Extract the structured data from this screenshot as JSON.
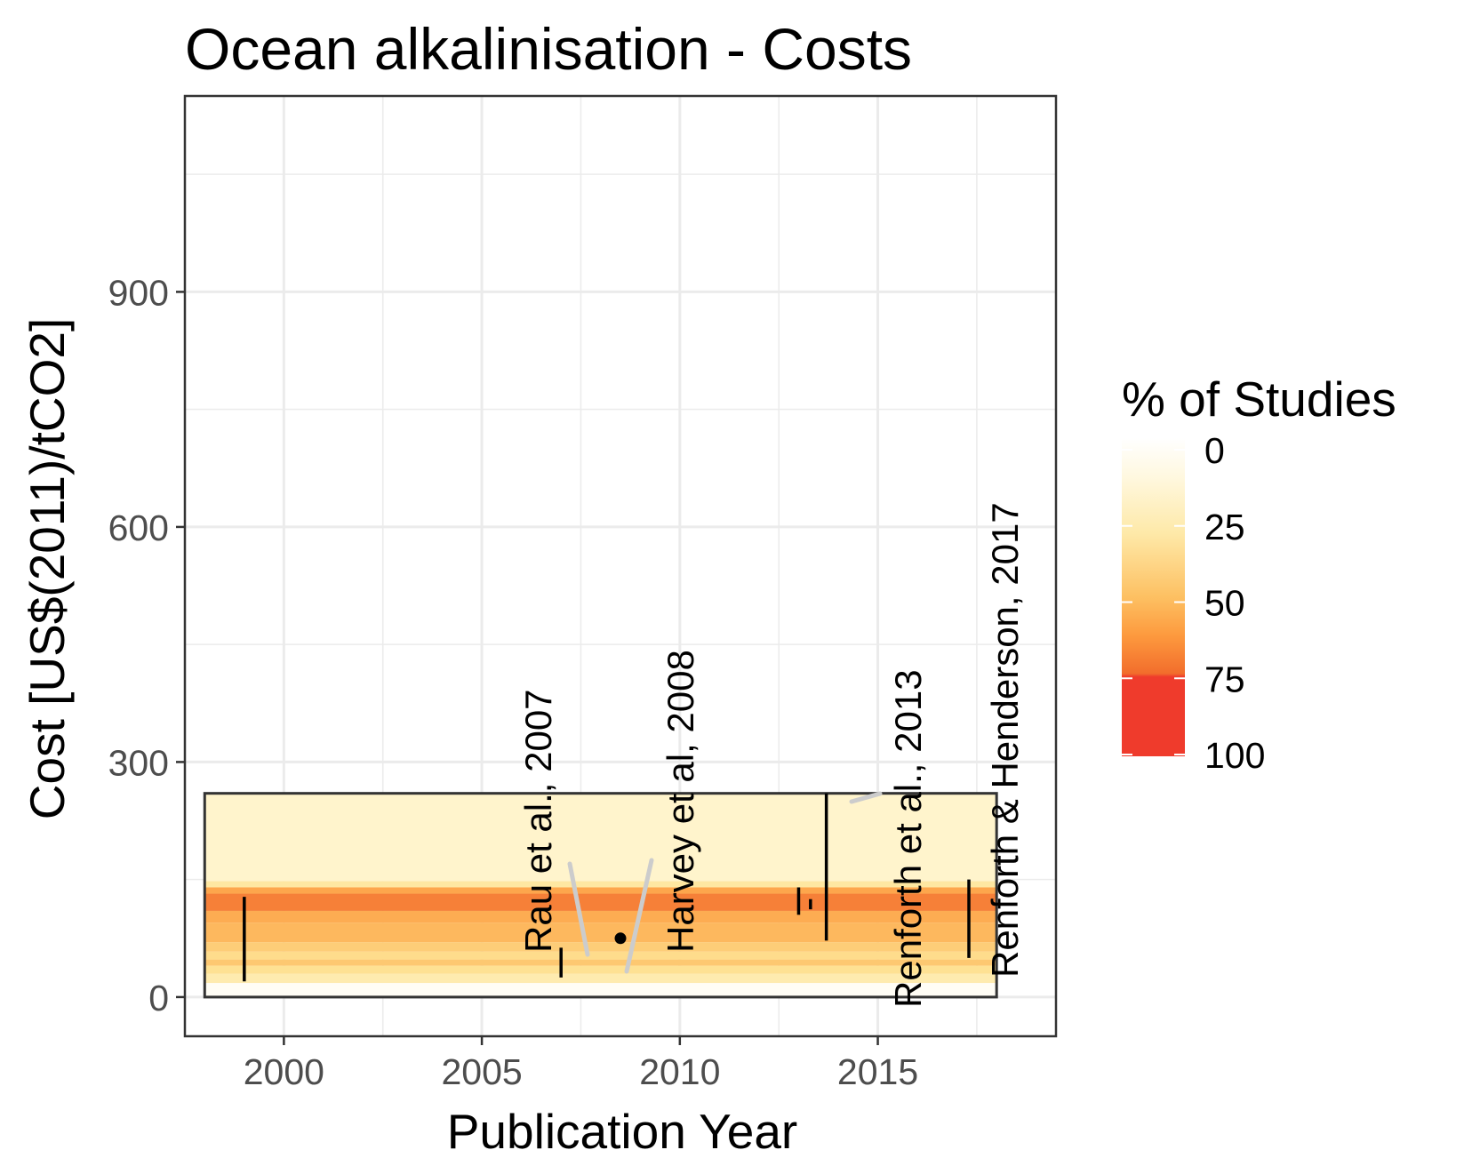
{
  "chart_data": {
    "type": "range",
    "title": "Ocean alkalinisation - Costs",
    "xlabel": "Publication Year",
    "ylabel": "Cost [US$(2011)/tCO2]",
    "xlim": [
      1997.5,
      2019.5
    ],
    "ylim": [
      -50,
      1150
    ],
    "x_ticks": [
      2000,
      2005,
      2010,
      2015
    ],
    "y_ticks": [
      0,
      300,
      600,
      900
    ],
    "x_tick_labels": [
      "2000",
      "2005",
      "2010",
      "2015"
    ],
    "y_tick_labels": [
      "0",
      "300",
      "600",
      "900"
    ],
    "grid": true,
    "legend": {
      "title": "% of Studies",
      "position": "right",
      "labels": [
        "0",
        "25",
        "50",
        "75",
        "100"
      ],
      "colors": [
        "#fff7dc",
        "#fee8a0",
        "#fdb64a",
        "#ef3b2c",
        "#ef3b2c"
      ]
    },
    "overall_range": {
      "x": [
        1998,
        2018
      ],
      "y": [
        0,
        260
      ]
    },
    "density_bands": [
      {
        "y": [
          0,
          18
        ],
        "pct": 2
      },
      {
        "y": [
          18,
          30
        ],
        "pct": 18
      },
      {
        "y": [
          30,
          40
        ],
        "pct": 26
      },
      {
        "y": [
          40,
          48
        ],
        "pct": 36
      },
      {
        "y": [
          48,
          58
        ],
        "pct": 28
      },
      {
        "y": [
          58,
          70
        ],
        "pct": 34
      },
      {
        "y": [
          70,
          95
        ],
        "pct": 42
      },
      {
        "y": [
          95,
          110
        ],
        "pct": 46
      },
      {
        "y": [
          110,
          132
        ],
        "pct": 62
      },
      {
        "y": [
          132,
          140
        ],
        "pct": 48
      },
      {
        "y": [
          140,
          148
        ],
        "pct": 22
      },
      {
        "y": [
          148,
          260
        ],
        "pct": 10
      }
    ],
    "studies": [
      {
        "x": 1999.0,
        "ymin": 20,
        "ymax": 128,
        "type": "range"
      },
      {
        "x": 2007.0,
        "ymin": 25,
        "ymax": 63,
        "type": "range",
        "label": "Rau et al., 2007"
      },
      {
        "x": 2008.5,
        "y": 75,
        "type": "point",
        "label": "Harvey et al, 2008"
      },
      {
        "x": 2013.0,
        "ymin": 105,
        "ymax": 140,
        "type": "range"
      },
      {
        "x": 2013.3,
        "ymin": 112,
        "ymax": 125,
        "type": "range"
      },
      {
        "x": 2013.7,
        "ymin": 72,
        "ymax": 260,
        "type": "range",
        "label": "Renforth et al., 2013"
      },
      {
        "x": 2017.3,
        "ymin": 50,
        "ymax": 150,
        "type": "range",
        "label": "Renforth & Henderson, 2017"
      }
    ]
  }
}
